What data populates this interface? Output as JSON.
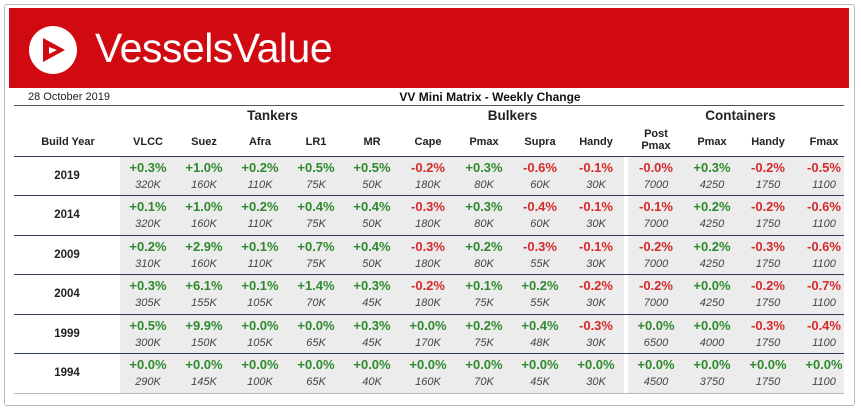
{
  "brand": {
    "name": "VesselsValue"
  },
  "header": {
    "date": "28 October 2019",
    "title": "VV Mini Matrix - Weekly Change"
  },
  "groups": [
    "Tankers",
    "Bulkers",
    "Containers"
  ],
  "build_year_label": "Build Year",
  "columns": [
    {
      "label": "VLCC",
      "group": 0
    },
    {
      "label": "Suez",
      "group": 0
    },
    {
      "label": "Afra",
      "group": 0
    },
    {
      "label": "LR1",
      "group": 0
    },
    {
      "label": "MR",
      "group": 0
    },
    {
      "label": "Cape",
      "group": 1
    },
    {
      "label": "Pmax",
      "group": 1
    },
    {
      "label": "Supra",
      "group": 1
    },
    {
      "label": "Handy",
      "group": 1
    },
    {
      "label": "Post Pmax",
      "group": 2
    },
    {
      "label": "Pmax",
      "group": 2
    },
    {
      "label": "Handy",
      "group": 2
    },
    {
      "label": "Fmax",
      "group": 2
    }
  ],
  "rows": [
    {
      "year": "2019",
      "changes": [
        "+0.3%",
        "+1.0%",
        "+0.2%",
        "+0.5%",
        "+0.5%",
        "-0.2%",
        "+0.3%",
        "-0.6%",
        "-0.1%",
        "-0.0%",
        "+0.3%",
        "-0.2%",
        "-0.5%"
      ],
      "values": [
        "320K",
        "160K",
        "110K",
        "75K",
        "50K",
        "180K",
        "80K",
        "60K",
        "30K",
        "7000",
        "4250",
        "1750",
        "1100"
      ]
    },
    {
      "year": "2014",
      "changes": [
        "+0.1%",
        "+1.0%",
        "+0.2%",
        "+0.4%",
        "+0.4%",
        "-0.3%",
        "+0.3%",
        "-0.4%",
        "-0.1%",
        "-0.1%",
        "+0.2%",
        "-0.2%",
        "-0.6%"
      ],
      "values": [
        "320K",
        "160K",
        "110K",
        "75K",
        "50K",
        "180K",
        "80K",
        "60K",
        "30K",
        "7000",
        "4250",
        "1750",
        "1100"
      ]
    },
    {
      "year": "2009",
      "changes": [
        "+0.2%",
        "+2.9%",
        "+0.1%",
        "+0.7%",
        "+0.4%",
        "-0.3%",
        "+0.2%",
        "-0.3%",
        "-0.1%",
        "-0.2%",
        "+0.2%",
        "-0.3%",
        "-0.6%"
      ],
      "values": [
        "310K",
        "160K",
        "110K",
        "75K",
        "50K",
        "180K",
        "80K",
        "55K",
        "30K",
        "7000",
        "4250",
        "1750",
        "1100"
      ]
    },
    {
      "year": "2004",
      "changes": [
        "+0.3%",
        "+6.1%",
        "+0.1%",
        "+1.4%",
        "+0.3%",
        "-0.2%",
        "+0.1%",
        "+0.2%",
        "-0.2%",
        "-0.2%",
        "+0.0%",
        "-0.2%",
        "-0.7%"
      ],
      "values": [
        "305K",
        "155K",
        "105K",
        "70K",
        "45K",
        "180K",
        "75K",
        "55K",
        "30K",
        "7000",
        "4250",
        "1750",
        "1100"
      ]
    },
    {
      "year": "1999",
      "changes": [
        "+0.5%",
        "+9.9%",
        "+0.0%",
        "+0.0%",
        "+0.3%",
        "+0.0%",
        "+0.2%",
        "+0.4%",
        "-0.3%",
        "+0.0%",
        "+0.0%",
        "-0.3%",
        "-0.4%"
      ],
      "values": [
        "300K",
        "150K",
        "105K",
        "65K",
        "45K",
        "170K",
        "75K",
        "48K",
        "30K",
        "6500",
        "4000",
        "1750",
        "1100"
      ]
    },
    {
      "year": "1994",
      "changes": [
        "+0.0%",
        "+0.0%",
        "+0.0%",
        "+0.0%",
        "+0.0%",
        "+0.0%",
        "+0.0%",
        "+0.0%",
        "+0.0%",
        "+0.0%",
        "+0.0%",
        "+0.0%",
        "+0.0%"
      ],
      "values": [
        "290K",
        "145K",
        "100K",
        "65K",
        "40K",
        "160K",
        "70K",
        "45K",
        "30K",
        "4500",
        "3750",
        "1750",
        "1100"
      ]
    }
  ],
  "colors": {
    "brand": "#d10a11",
    "positive": "#2f8a2f",
    "negative": "#d52a2a",
    "shade": "#ececec"
  }
}
